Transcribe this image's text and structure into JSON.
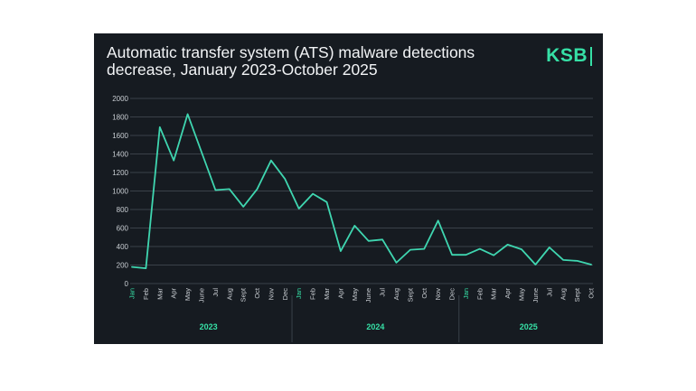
{
  "header": {
    "title": "Automatic transfer system (ATS) malware detections decrease, January 2023-October 2025",
    "brand": "KSB"
  },
  "colors": {
    "background": "#161b21",
    "line": "#3fd6b0",
    "accent": "#36e0a6",
    "grid": "#3a4149",
    "text": "#c9ced3"
  },
  "chart_data": {
    "type": "line",
    "title": "Automatic transfer system (ATS) malware detections decrease, January 2023-October 2025",
    "xlabel": "",
    "ylabel": "",
    "ylim": [
      0,
      2000
    ],
    "yticks": [
      0,
      200,
      400,
      600,
      800,
      1000,
      1200,
      1400,
      1600,
      1800,
      2000
    ],
    "grid": true,
    "categories": [
      "Jan",
      "Feb",
      "Mar",
      "Apr",
      "May",
      "June",
      "Jul",
      "Aug",
      "Sept",
      "Oct",
      "Nov",
      "Dec",
      "Jan",
      "Feb",
      "Mar",
      "Apr",
      "May",
      "June",
      "Jul",
      "Aug",
      "Sept",
      "Oct",
      "Nov",
      "Dec",
      "Jan",
      "Feb",
      "Mar",
      "Apr",
      "May",
      "June",
      "Jul",
      "Aug",
      "Sept",
      "Oct"
    ],
    "years": [
      {
        "label": "2023",
        "start": 0,
        "end": 11
      },
      {
        "label": "2024",
        "start": 12,
        "end": 23
      },
      {
        "label": "2025",
        "start": 24,
        "end": 33
      }
    ],
    "series": [
      {
        "name": "ATS malware detections",
        "values": [
          180,
          165,
          1690,
          1330,
          1830,
          1420,
          1010,
          1020,
          830,
          1020,
          1330,
          1130,
          810,
          970,
          880,
          350,
          625,
          460,
          475,
          225,
          365,
          375,
          680,
          310,
          310,
          375,
          305,
          420,
          370,
          205,
          390,
          255,
          245,
          205
        ]
      }
    ]
  }
}
